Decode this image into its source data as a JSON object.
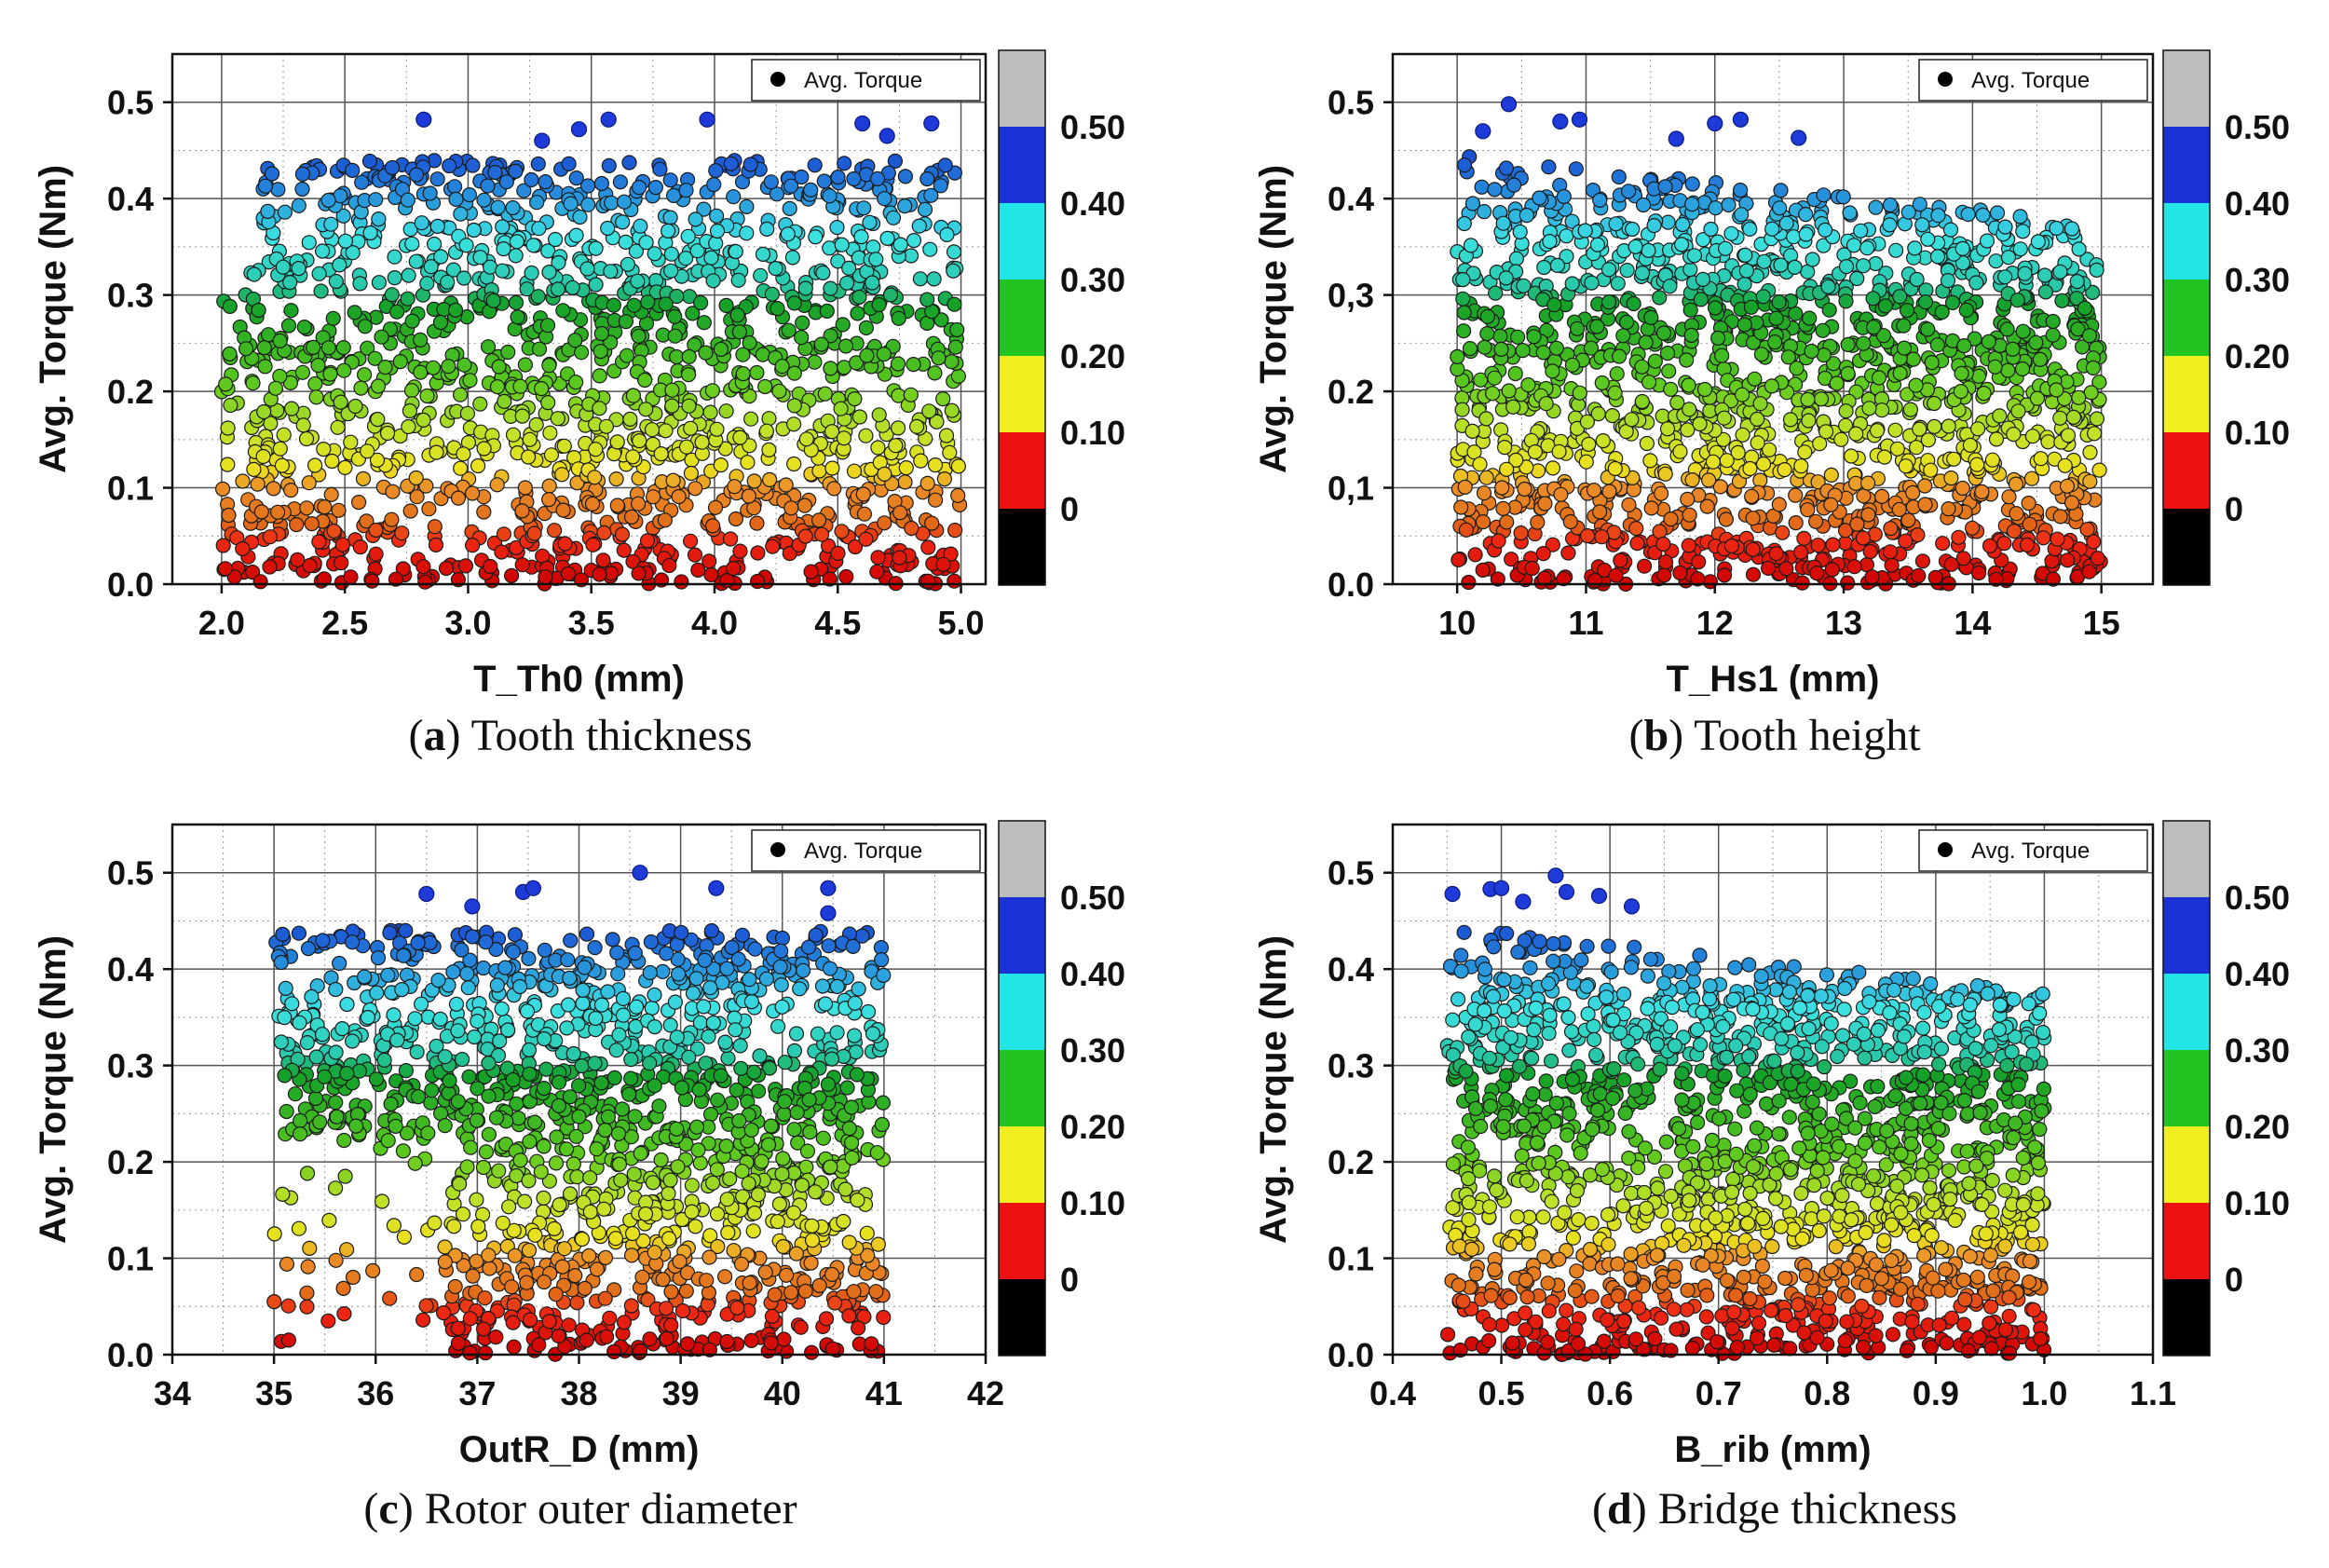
{
  "figure": {
    "panels": [
      {
        "caption_letter": "a",
        "caption_text": " Tooth thickness",
        "chart_data": {
          "type": "scatter",
          "xlabel": "T_Th0 (mm)",
          "ylabel": "Avg. Torque (Nm)",
          "xlim": [
            1.8,
            5.1
          ],
          "ylim": [
            0.0,
            0.55
          ],
          "x_ticks": [
            2.0,
            2.5,
            3.0,
            3.5,
            4.0,
            4.5,
            5.0
          ],
          "x_tick_labels": [
            "2.0",
            "2.5",
            "3.0",
            "3.5",
            "4.0",
            "4.5",
            "5.0"
          ],
          "y_ticks": [
            0.0,
            0.1,
            0.2,
            0.3,
            0.4,
            0.5
          ],
          "y_tick_labels": [
            "0.0",
            "0.1",
            "0.2",
            "0.3",
            "0.4",
            "0.5"
          ],
          "x_data_range": [
            2.0,
            5.0
          ],
          "legend": "Avg. Torque",
          "legend_position": "top-right",
          "colorbar": {
            "labels": [
              "0.50",
              "0.40",
              "0.30",
              "0.20",
              "0.10",
              "0"
            ],
            "colors": [
              "#bdbdbd",
              "#1a33d6",
              "#22e6e6",
              "#22c422",
              "#f0f020",
              "#ee1111",
              "#000000"
            ]
          },
          "highlight_points": [
            [
              2.82,
              0.482
            ],
            [
              3.3,
              0.46
            ],
            [
              3.45,
              0.472
            ],
            [
              3.57,
              0.482
            ],
            [
              3.97,
              0.482
            ],
            [
              4.6,
              0.478
            ],
            [
              4.88,
              0.478
            ],
            [
              4.7,
              0.465
            ]
          ]
        }
      },
      {
        "caption_letter": "b",
        "caption_text": " Tooth height",
        "chart_data": {
          "type": "scatter",
          "xlabel": "T_Hs1 (mm)",
          "ylabel": "Avg. Torque (Nm)",
          "xlim": [
            9.5,
            15.4
          ],
          "ylim": [
            0.0,
            0.55
          ],
          "x_ticks": [
            10,
            11,
            12,
            13,
            14,
            15
          ],
          "x_tick_labels": [
            "10",
            "11",
            "12",
            "13",
            "14",
            "15"
          ],
          "y_ticks": [
            0.0,
            0.1,
            0.2,
            0.3,
            0.4,
            0.5
          ],
          "y_tick_labels": [
            "0.0",
            "0,1",
            "0.2",
            "0,3",
            "0.4",
            "0.5"
          ],
          "x_data_range": [
            10,
            15
          ],
          "legend": "Avg. Torque",
          "legend_position": "top-right",
          "colorbar": {
            "labels": [
              "0.50",
              "0.40",
              "0.30",
              "0.20",
              "0.10",
              "0"
            ],
            "colors": [
              "#bdbdbd",
              "#1a33d6",
              "#22e6e6",
              "#22c422",
              "#f0f020",
              "#ee1111",
              "#000000"
            ]
          },
          "highlight_points": [
            [
              10.4,
              0.498
            ],
            [
              10.8,
              0.48
            ],
            [
              10.95,
              0.482
            ],
            [
              12.0,
              0.478
            ],
            [
              12.2,
              0.482
            ],
            [
              12.65,
              0.463
            ],
            [
              10.2,
              0.47
            ],
            [
              11.7,
              0.462
            ]
          ]
        }
      },
      {
        "caption_letter": "c",
        "caption_text": " Rotor outer diameter",
        "chart_data": {
          "type": "scatter",
          "xlabel": "OutR_D (mm)",
          "ylabel": "Avg. Torque (Nm)",
          "xlim": [
            34.0,
            42.0
          ],
          "ylim": [
            0.0,
            0.55
          ],
          "x_ticks": [
            34,
            35,
            36,
            37,
            38,
            39,
            40,
            41,
            42
          ],
          "x_tick_labels": [
            "34",
            "35",
            "36",
            "37",
            "38",
            "39",
            "40",
            "41",
            "42"
          ],
          "y_ticks": [
            0.0,
            0.1,
            0.2,
            0.3,
            0.4,
            0.5
          ],
          "y_tick_labels": [
            "0.0",
            "0.1",
            "0.2",
            "0.3",
            "0.4",
            "0.5"
          ],
          "x_data_range": [
            35,
            41
          ],
          "legend": "Avg. Torque",
          "legend_position": "top-right",
          "colorbar": {
            "labels": [
              "0.50",
              "0.40",
              "0.30",
              "0.20",
              "0.10",
              "0"
            ],
            "colors": [
              "#bdbdbd",
              "#1a33d6",
              "#22e6e6",
              "#22c422",
              "#f0f020",
              "#ee1111",
              "#000000"
            ]
          },
          "highlight_points": [
            [
              36.5,
              0.478
            ],
            [
              36.95,
              0.465
            ],
            [
              37.45,
              0.48
            ],
            [
              37.55,
              0.484
            ],
            [
              38.6,
              0.5
            ],
            [
              39.35,
              0.484
            ],
            [
              40.45,
              0.484
            ],
            [
              40.45,
              0.458
            ]
          ]
        }
      },
      {
        "caption_letter": "d",
        "caption_text": " Bridge thickness",
        "chart_data": {
          "type": "scatter",
          "xlabel": "B_rib (mm)",
          "ylabel": "Avg. Torque (Nm)",
          "xlim": [
            0.4,
            1.1
          ],
          "ylim": [
            0.0,
            0.55
          ],
          "x_ticks": [
            0.4,
            0.5,
            0.6,
            0.7,
            0.8,
            0.9,
            1.0,
            1.1
          ],
          "x_tick_labels": [
            "0.4",
            "0.5",
            "0.6",
            "0.7",
            "0.8",
            "0.9",
            "1.0",
            "1.1"
          ],
          "y_ticks": [
            0.0,
            0.1,
            0.2,
            0.3,
            0.4,
            0.5
          ],
          "y_tick_labels": [
            "0.0",
            "0.1",
            "0.2",
            "0.3",
            "0.4",
            "0.5"
          ],
          "x_data_range": [
            0.45,
            1.0
          ],
          "legend": "Avg. Torque",
          "legend_position": "top-right",
          "colorbar": {
            "labels": [
              "0.50",
              "0.40",
              "0.30",
              "0.20",
              "0.10",
              "0"
            ],
            "colors": [
              "#bdbdbd",
              "#1a33d6",
              "#22e6e6",
              "#22c422",
              "#f0f020",
              "#ee1111",
              "#000000"
            ]
          },
          "highlight_points": [
            [
              0.455,
              0.478
            ],
            [
              0.49,
              0.483
            ],
            [
              0.5,
              0.484
            ],
            [
              0.55,
              0.497
            ],
            [
              0.56,
              0.48
            ],
            [
              0.59,
              0.476
            ],
            [
              0.62,
              0.465
            ],
            [
              0.52,
              0.47
            ]
          ]
        }
      }
    ]
  }
}
